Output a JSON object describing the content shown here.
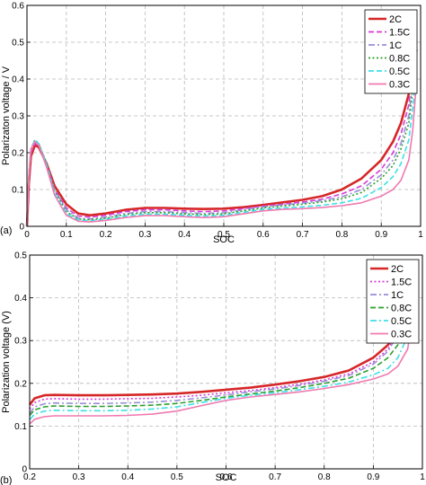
{
  "chart_data": [
    {
      "type": "line",
      "panel_label": "(a)",
      "xlabel": "SOC",
      "ylabel": "Polarizaton voltage / V",
      "xlim": [
        0,
        1
      ],
      "ylim": [
        0,
        0.6
      ],
      "xticks": [
        "0",
        "0.1",
        "0.2",
        "0.3",
        "0.4",
        "0.5",
        "0.6",
        "0.7",
        "0.8",
        "0.9",
        "1"
      ],
      "yticks": [
        "0",
        "0.1",
        "0.2",
        "0.3",
        "0.4",
        "0.5",
        "0.6"
      ],
      "grid": true,
      "legend": "top-right",
      "series": [
        {
          "name": "2C",
          "color": "#d62728",
          "dash": "solid",
          "x": [
            0,
            0.005,
            0.01,
            0.02,
            0.03,
            0.05,
            0.07,
            0.1,
            0.13,
            0.16,
            0.2,
            0.25,
            0.3,
            0.35,
            0.4,
            0.45,
            0.5,
            0.55,
            0.6,
            0.65,
            0.7,
            0.75,
            0.8,
            0.85,
            0.9,
            0.93,
            0.95,
            0.97,
            0.98,
            0.99
          ],
          "y": [
            0.0,
            0.12,
            0.19,
            0.22,
            0.215,
            0.17,
            0.11,
            0.06,
            0.035,
            0.03,
            0.035,
            0.045,
            0.05,
            0.05,
            0.048,
            0.047,
            0.048,
            0.052,
            0.058,
            0.065,
            0.072,
            0.082,
            0.1,
            0.13,
            0.18,
            0.23,
            0.28,
            0.36,
            0.43,
            0.48
          ]
        },
        {
          "name": "1.5C",
          "color": "#d63cd6",
          "dash": "dash",
          "x": [
            0,
            0.005,
            0.01,
            0.02,
            0.03,
            0.05,
            0.07,
            0.1,
            0.13,
            0.16,
            0.2,
            0.25,
            0.3,
            0.35,
            0.4,
            0.45,
            0.5,
            0.55,
            0.6,
            0.65,
            0.7,
            0.75,
            0.8,
            0.85,
            0.9,
            0.93,
            0.95,
            0.97,
            0.98,
            0.99
          ],
          "y": [
            0.0,
            0.13,
            0.2,
            0.225,
            0.22,
            0.17,
            0.1,
            0.05,
            0.028,
            0.025,
            0.03,
            0.04,
            0.045,
            0.045,
            0.042,
            0.04,
            0.042,
            0.048,
            0.055,
            0.06,
            0.066,
            0.074,
            0.088,
            0.11,
            0.155,
            0.2,
            0.25,
            0.33,
            0.42,
            0.48
          ]
        },
        {
          "name": "1C",
          "color": "#9a8fd8",
          "dash": "dashdot",
          "x": [
            0,
            0.005,
            0.01,
            0.02,
            0.03,
            0.05,
            0.07,
            0.1,
            0.13,
            0.16,
            0.2,
            0.25,
            0.3,
            0.35,
            0.4,
            0.45,
            0.5,
            0.55,
            0.6,
            0.65,
            0.7,
            0.75,
            0.8,
            0.85,
            0.9,
            0.93,
            0.95,
            0.97,
            0.98,
            0.99
          ],
          "y": [
            0.0,
            0.14,
            0.21,
            0.235,
            0.225,
            0.17,
            0.1,
            0.045,
            0.022,
            0.02,
            0.025,
            0.035,
            0.04,
            0.04,
            0.037,
            0.035,
            0.037,
            0.045,
            0.053,
            0.058,
            0.063,
            0.07,
            0.08,
            0.1,
            0.14,
            0.18,
            0.225,
            0.3,
            0.39,
            0.49
          ]
        },
        {
          "name": "0.8C",
          "color": "#2ca02c",
          "dash": "dot",
          "x": [
            0,
            0.005,
            0.01,
            0.02,
            0.03,
            0.05,
            0.07,
            0.1,
            0.13,
            0.16,
            0.2,
            0.25,
            0.3,
            0.35,
            0.4,
            0.45,
            0.5,
            0.55,
            0.6,
            0.65,
            0.7,
            0.75,
            0.8,
            0.85,
            0.9,
            0.93,
            0.95,
            0.97,
            0.98,
            0.99
          ],
          "y": [
            0.0,
            0.14,
            0.21,
            0.235,
            0.225,
            0.17,
            0.095,
            0.04,
            0.02,
            0.018,
            0.022,
            0.032,
            0.037,
            0.037,
            0.034,
            0.032,
            0.034,
            0.042,
            0.05,
            0.055,
            0.06,
            0.066,
            0.075,
            0.092,
            0.13,
            0.165,
            0.21,
            0.28,
            0.37,
            0.48
          ]
        },
        {
          "name": "0.5C",
          "color": "#3ee0e8",
          "dash": "dash",
          "x": [
            0,
            0.005,
            0.01,
            0.02,
            0.03,
            0.05,
            0.07,
            0.1,
            0.13,
            0.16,
            0.2,
            0.25,
            0.3,
            0.35,
            0.4,
            0.45,
            0.5,
            0.55,
            0.6,
            0.65,
            0.7,
            0.75,
            0.8,
            0.85,
            0.9,
            0.93,
            0.95,
            0.97,
            0.98,
            0.99
          ],
          "y": [
            0.0,
            0.14,
            0.21,
            0.235,
            0.225,
            0.165,
            0.09,
            0.035,
            0.017,
            0.015,
            0.019,
            0.028,
            0.033,
            0.033,
            0.03,
            0.028,
            0.03,
            0.038,
            0.046,
            0.05,
            0.053,
            0.057,
            0.064,
            0.076,
            0.105,
            0.135,
            0.17,
            0.235,
            0.32,
            0.42
          ]
        },
        {
          "name": "0.3C",
          "color": "#f07ab0",
          "dash": "solid",
          "x": [
            0,
            0.005,
            0.01,
            0.02,
            0.03,
            0.05,
            0.07,
            0.1,
            0.13,
            0.16,
            0.2,
            0.25,
            0.3,
            0.35,
            0.4,
            0.45,
            0.5,
            0.55,
            0.6,
            0.65,
            0.7,
            0.75,
            0.8,
            0.85,
            0.9,
            0.93,
            0.95,
            0.97,
            0.98,
            0.99
          ],
          "y": [
            0.0,
            0.14,
            0.21,
            0.23,
            0.22,
            0.16,
            0.085,
            0.03,
            0.014,
            0.012,
            0.016,
            0.024,
            0.029,
            0.029,
            0.026,
            0.024,
            0.026,
            0.034,
            0.042,
            0.046,
            0.048,
            0.051,
            0.056,
            0.064,
            0.082,
            0.1,
            0.125,
            0.18,
            0.26,
            0.4
          ]
        }
      ]
    },
    {
      "type": "line",
      "panel_label": "(b)",
      "xlabel": "SOC",
      "ylabel": "Polarization voltage (V)",
      "xlim": [
        0.2,
        1
      ],
      "ylim": [
        0,
        0.5
      ],
      "xticks": [
        "0.2",
        "0.3",
        "0.4",
        "0.5",
        "0.6",
        "0.7",
        "0.8",
        "0.9",
        "1"
      ],
      "yticks": [
        "0",
        "0.1",
        "0.2",
        "0.3",
        "0.4",
        "0.5"
      ],
      "grid": true,
      "legend": "top-right",
      "series": [
        {
          "name": "2C",
          "color": "#d62728",
          "dash": "solid",
          "x": [
            0.2,
            0.21,
            0.23,
            0.25,
            0.3,
            0.35,
            0.4,
            0.45,
            0.5,
            0.55,
            0.6,
            0.65,
            0.7,
            0.75,
            0.8,
            0.85,
            0.9,
            0.93,
            0.95,
            0.97,
            0.99
          ],
          "y": [
            0.15,
            0.165,
            0.172,
            0.173,
            0.172,
            0.172,
            0.173,
            0.174,
            0.176,
            0.18,
            0.185,
            0.19,
            0.197,
            0.205,
            0.215,
            0.23,
            0.26,
            0.29,
            0.33,
            0.38,
            0.44
          ]
        },
        {
          "name": "1.5C",
          "color": "#d63cd6",
          "dash": "dot",
          "x": [
            0.2,
            0.21,
            0.23,
            0.25,
            0.3,
            0.35,
            0.4,
            0.45,
            0.5,
            0.55,
            0.6,
            0.65,
            0.7,
            0.75,
            0.8,
            0.85,
            0.9,
            0.93,
            0.95,
            0.97,
            0.99
          ],
          "y": [
            0.14,
            0.155,
            0.163,
            0.164,
            0.163,
            0.163,
            0.164,
            0.165,
            0.168,
            0.172,
            0.178,
            0.183,
            0.19,
            0.198,
            0.208,
            0.222,
            0.25,
            0.28,
            0.32,
            0.37,
            0.445
          ]
        },
        {
          "name": "1C",
          "color": "#9a8fd8",
          "dash": "dashdot",
          "x": [
            0.2,
            0.21,
            0.23,
            0.25,
            0.3,
            0.35,
            0.4,
            0.45,
            0.5,
            0.55,
            0.6,
            0.65,
            0.7,
            0.75,
            0.8,
            0.85,
            0.9,
            0.93,
            0.95,
            0.97,
            0.99
          ],
          "y": [
            0.13,
            0.145,
            0.152,
            0.154,
            0.153,
            0.153,
            0.154,
            0.156,
            0.16,
            0.166,
            0.173,
            0.18,
            0.187,
            0.195,
            0.205,
            0.218,
            0.245,
            0.275,
            0.315,
            0.365,
            0.44
          ]
        },
        {
          "name": "0.8C",
          "color": "#2ca02c",
          "dash": "dash",
          "x": [
            0.2,
            0.21,
            0.23,
            0.25,
            0.3,
            0.35,
            0.4,
            0.45,
            0.5,
            0.55,
            0.6,
            0.65,
            0.7,
            0.75,
            0.8,
            0.85,
            0.9,
            0.93,
            0.95,
            0.97,
            0.99
          ],
          "y": [
            0.125,
            0.138,
            0.145,
            0.147,
            0.146,
            0.146,
            0.147,
            0.149,
            0.153,
            0.16,
            0.168,
            0.175,
            0.182,
            0.19,
            0.2,
            0.212,
            0.235,
            0.26,
            0.29,
            0.34,
            0.43
          ]
        },
        {
          "name": "0.5C",
          "color": "#3ee0e8",
          "dash": "dashdot",
          "x": [
            0.2,
            0.21,
            0.23,
            0.25,
            0.3,
            0.35,
            0.4,
            0.45,
            0.5,
            0.55,
            0.6,
            0.65,
            0.7,
            0.75,
            0.8,
            0.85,
            0.9,
            0.93,
            0.95,
            0.97,
            0.99
          ],
          "y": [
            0.115,
            0.128,
            0.135,
            0.137,
            0.136,
            0.136,
            0.137,
            0.14,
            0.145,
            0.155,
            0.165,
            0.172,
            0.178,
            0.185,
            0.193,
            0.203,
            0.22,
            0.235,
            0.26,
            0.31,
            0.42
          ]
        },
        {
          "name": "0.3C",
          "color": "#f07ab0",
          "dash": "solid",
          "x": [
            0.2,
            0.21,
            0.23,
            0.25,
            0.3,
            0.35,
            0.4,
            0.45,
            0.5,
            0.55,
            0.6,
            0.65,
            0.7,
            0.75,
            0.8,
            0.85,
            0.9,
            0.93,
            0.95,
            0.97,
            0.99
          ],
          "y": [
            0.105,
            0.116,
            0.122,
            0.124,
            0.124,
            0.124,
            0.125,
            0.128,
            0.135,
            0.148,
            0.16,
            0.168,
            0.174,
            0.18,
            0.188,
            0.197,
            0.21,
            0.222,
            0.24,
            0.28,
            0.43
          ]
        }
      ]
    }
  ]
}
